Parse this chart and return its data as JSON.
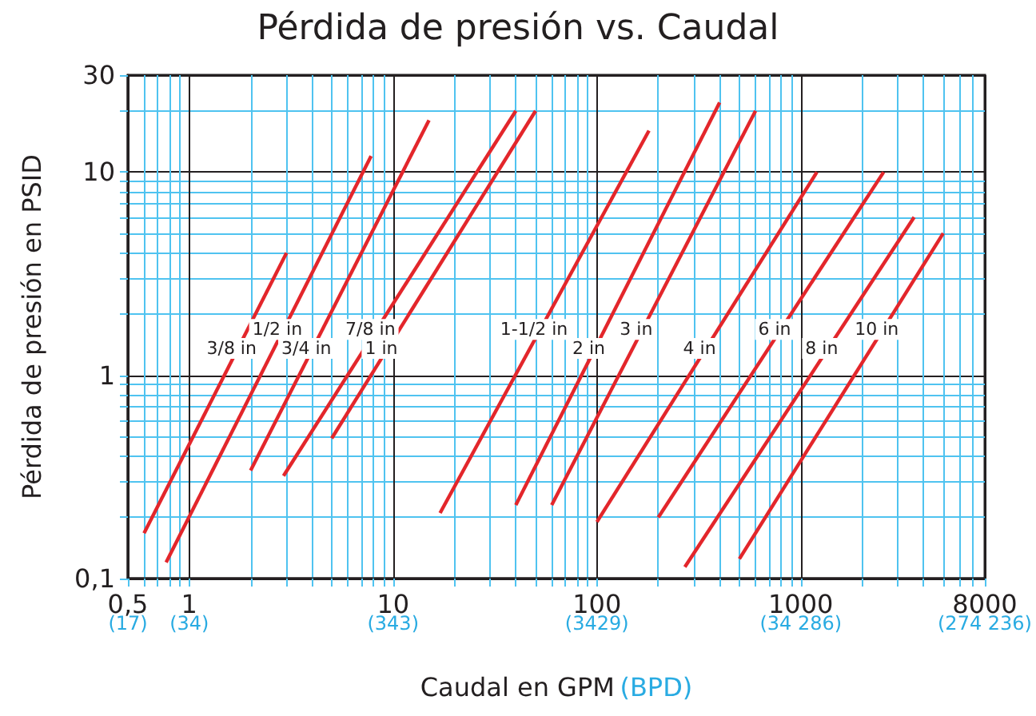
{
  "chart_data": {
    "type": "line",
    "title": "Pérdida de presión vs. Caudal",
    "xlabel": "Caudal en GPM (BPD)",
    "annotations": [
      "(17)",
      "(34)",
      "(343)",
      "(3429)",
      "(34 286)",
      "(274 236)"
    ],
    "ylabel": "Pérdida de presión en PSID",
    "log": "xy",
    "grid": true,
    "marker": "none",
    "line_style": "solid",
    "xlim": [
      0.5,
      8000
    ],
    "ylim": [
      0.1,
      30
    ],
    "xticks": [
      {
        "value": 0.5,
        "label": "0,5"
      },
      {
        "value": 0.6,
        "label": null
      },
      {
        "value": 0.7,
        "label": null
      },
      {
        "value": 0.8,
        "label": null
      },
      {
        "value": 0.9,
        "label": null
      },
      1,
      {
        "value": 2,
        "label": null
      },
      {
        "value": 3,
        "label": null
      },
      {
        "value": 4,
        "label": null
      },
      {
        "value": 5,
        "label": null
      },
      {
        "value": 6,
        "label": null
      },
      {
        "value": 7,
        "label": null
      },
      {
        "value": 8,
        "label": null
      },
      {
        "value": 9,
        "label": null
      },
      10,
      {
        "value": 20,
        "label": null
      },
      {
        "value": 30,
        "label": null
      },
      {
        "value": 40,
        "label": null
      },
      {
        "value": 50,
        "label": null
      },
      {
        "value": 60,
        "label": null
      },
      {
        "value": 70,
        "label": null
      },
      {
        "value": 80,
        "label": null
      },
      {
        "value": 90,
        "label": null
      },
      100,
      {
        "value": 200,
        "label": null
      },
      {
        "value": 300,
        "label": null
      },
      {
        "value": 400,
        "label": null
      },
      {
        "value": 500,
        "label": null
      },
      {
        "value": 600,
        "label": null
      },
      {
        "value": 700,
        "label": null
      },
      {
        "value": 800,
        "label": null
      },
      {
        "value": 900,
        "label": null
      },
      1000,
      {
        "value": 2000,
        "label": null
      },
      {
        "value": 3000,
        "label": null
      },
      {
        "value": 4000,
        "label": null
      },
      {
        "value": 5000,
        "label": null
      },
      {
        "value": 6000,
        "label": null
      },
      {
        "value": 7000,
        "label": null
      },
      8000
    ],
    "yticks": [
      {
        "value": 0.1,
        "label": "0,1"
      },
      {
        "value": 0.2,
        "label": null
      },
      {
        "value": 0.3,
        "label": null
      },
      {
        "value": 0.4,
        "label": null
      },
      {
        "value": 0.5,
        "label": null
      },
      {
        "value": 0.6,
        "label": null
      },
      {
        "value": 0.7,
        "label": null
      },
      {
        "value": 0.8,
        "label": null
      },
      {
        "value": 0.9,
        "label": null
      },
      1,
      {
        "value": 2,
        "label": null
      },
      {
        "value": 3,
        "label": null
      },
      {
        "value": 4,
        "label": null
      },
      {
        "value": 5,
        "label": null
      },
      {
        "value": 6,
        "label": null
      },
      {
        "value": 7,
        "label": null
      },
      {
        "value": 8,
        "label": null
      },
      {
        "value": 9,
        "label": null
      },
      10,
      {
        "value": 20,
        "label": null
      },
      30
    ],
    "series": [
      {
        "name": "3/8 in",
        "color": "#e3262b",
        "x": [
          0.6,
          3
        ],
        "values": [
          0.167,
          4
        ]
      },
      {
        "name": "1/2 in",
        "color": "#e3262b",
        "x": [
          0.77,
          7.8
        ],
        "values": [
          0.12,
          12
        ]
      },
      {
        "name": "3/4 in",
        "color": "#e3262b",
        "x": [
          2,
          15
        ],
        "values": [
          0.34,
          18
        ]
      },
      {
        "name": "7/8 in",
        "color": "#e3262b",
        "x": [
          2.9,
          40
        ],
        "values": [
          0.32,
          20
        ]
      },
      {
        "name": "1 in",
        "color": "#e3262b",
        "x": [
          5,
          50
        ],
        "values": [
          0.49,
          20
        ]
      },
      {
        "name": "1-1/2 in",
        "color": "#e3262b",
        "x": [
          17,
          180
        ],
        "values": [
          0.21,
          16
        ]
      },
      {
        "name": "2 in",
        "color": "#e3262b",
        "x": [
          40,
          400
        ],
        "values": [
          0.23,
          22
        ]
      },
      {
        "name": "3 in",
        "color": "#e3262b",
        "x": [
          60,
          600
        ],
        "values": [
          0.23,
          20
        ]
      },
      {
        "name": "4 in",
        "color": "#e3262b",
        "x": [
          100,
          1200
        ],
        "values": [
          0.19,
          10
        ]
      },
      {
        "name": "6 in",
        "color": "#e3262b",
        "x": [
          200,
          2550
        ],
        "values": [
          0.2,
          10
        ]
      },
      {
        "name": "8 in",
        "color": "#e3262b",
        "x": [
          270,
          3600
        ],
        "values": [
          0.114,
          6
        ]
      },
      {
        "name": "10 in",
        "color": "#e3262b",
        "x": [
          500,
          5000
        ],
        "values": [
          0.125,
          5
        ]
      }
    ]
  }
}
